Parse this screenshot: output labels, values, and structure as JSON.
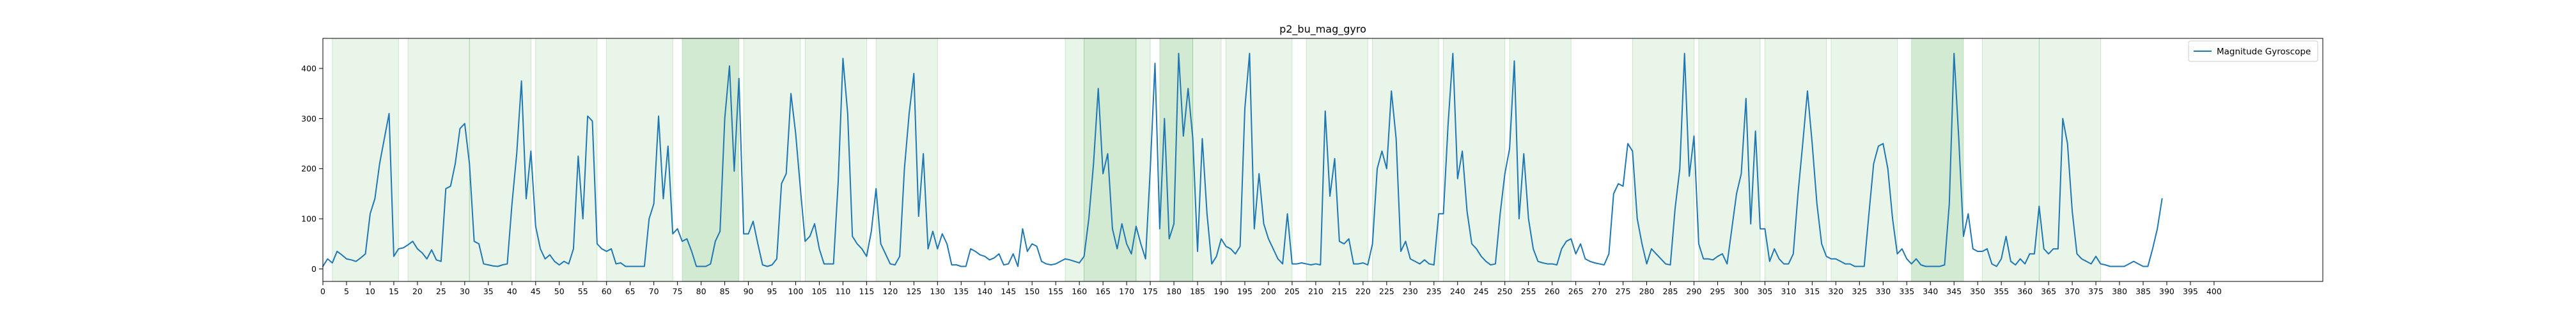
{
  "chart_data": {
    "type": "line",
    "title": "p2_bu_mag_gyro",
    "xlabel": "",
    "ylabel": "",
    "xlim": [
      0,
      423
    ],
    "ylim": [
      -25,
      460
    ],
    "x_ticks": [
      0,
      5,
      10,
      15,
      20,
      25,
      30,
      35,
      40,
      45,
      50,
      55,
      60,
      65,
      70,
      75,
      80,
      85,
      90,
      95,
      100,
      105,
      110,
      115,
      120,
      125,
      130,
      135,
      140,
      145,
      150,
      155,
      160,
      165,
      170,
      175,
      180,
      185,
      190,
      195,
      200,
      205,
      210,
      215,
      220,
      225,
      230,
      235,
      240,
      245,
      250,
      255,
      260,
      265,
      270,
      275,
      280,
      285,
      290,
      295,
      300,
      305,
      310,
      315,
      320,
      325,
      330,
      335,
      340,
      345,
      350,
      355,
      360,
      365,
      370,
      375,
      380,
      385,
      390,
      395,
      400
    ],
    "y_ticks": [
      0,
      100,
      200,
      300,
      400
    ],
    "grid": false,
    "legend_position": "top-right",
    "colors": {
      "line": "#1f77b4",
      "band": "#2ca02c"
    },
    "series": [
      {
        "name": "Magnitude Gyroscope",
        "x_start": 0,
        "x_step": 1,
        "values": [
          5,
          20,
          12,
          35,
          28,
          20,
          18,
          15,
          22,
          30,
          110,
          140,
          210,
          260,
          310,
          25,
          40,
          42,
          48,
          55,
          40,
          32,
          20,
          38,
          18,
          15,
          160,
          165,
          210,
          280,
          290,
          210,
          55,
          50,
          10,
          8,
          6,
          5,
          8,
          10,
          130,
          230,
          375,
          140,
          235,
          85,
          40,
          20,
          28,
          15,
          8,
          15,
          10,
          40,
          225,
          100,
          305,
          295,
          50,
          40,
          35,
          40,
          10,
          12,
          5,
          5,
          5,
          5,
          5,
          100,
          130,
          305,
          140,
          245,
          70,
          80,
          55,
          60,
          35,
          5,
          5,
          5,
          10,
          55,
          75,
          300,
          405,
          195,
          380,
          70,
          70,
          95,
          50,
          8,
          5,
          8,
          20,
          170,
          190,
          350,
          270,
          160,
          55,
          65,
          90,
          40,
          10,
          10,
          10,
          175,
          420,
          310,
          65,
          50,
          40,
          25,
          75,
          160,
          50,
          30,
          10,
          8,
          25,
          200,
          310,
          390,
          105,
          230,
          40,
          75,
          40,
          70,
          50,
          8,
          8,
          5,
          5,
          40,
          35,
          28,
          25,
          18,
          22,
          30,
          8,
          10,
          30,
          5,
          80,
          35,
          50,
          45,
          15,
          10,
          8,
          10,
          15,
          20,
          18,
          15,
          12,
          25,
          100,
          210,
          360,
          190,
          230,
          80,
          40,
          90,
          50,
          30,
          85,
          50,
          20,
          200,
          410,
          80,
          300,
          60,
          90,
          430,
          265,
          360,
          260,
          35,
          260,
          110,
          10,
          25,
          60,
          45,
          40,
          30,
          45,
          320,
          430,
          80,
          190,
          90,
          60,
          40,
          20,
          10,
          110,
          10,
          10,
          12,
          10,
          8,
          10,
          8,
          315,
          145,
          220,
          55,
          50,
          60,
          10,
          10,
          12,
          8,
          50,
          200,
          235,
          200,
          355,
          260,
          35,
          55,
          20,
          15,
          10,
          18,
          10,
          8,
          110,
          110,
          290,
          430,
          180,
          235,
          115,
          50,
          40,
          25,
          15,
          8,
          10,
          110,
          190,
          240,
          415,
          100,
          230,
          100,
          40,
          15,
          12,
          10,
          10,
          8,
          40,
          55,
          60,
          30,
          50,
          20,
          15,
          12,
          10,
          8,
          30,
          150,
          170,
          165,
          250,
          235,
          100,
          50,
          10,
          40,
          30,
          20,
          10,
          8,
          120,
          200,
          430,
          185,
          265,
          50,
          20,
          20,
          18,
          25,
          30,
          10,
          80,
          150,
          190,
          340,
          90,
          275,
          80,
          80,
          15,
          40,
          20,
          10,
          10,
          30,
          150,
          250,
          355,
          250,
          130,
          50,
          25,
          20,
          20,
          15,
          10,
          10,
          5,
          5,
          5,
          110,
          210,
          245,
          250,
          200,
          100,
          30,
          40,
          20,
          10,
          20,
          8,
          5,
          5,
          5,
          5,
          8,
          130,
          430,
          260,
          65,
          110,
          40,
          35,
          35,
          40,
          10,
          5,
          20,
          65,
          15,
          8,
          20,
          10,
          30,
          30,
          125,
          40,
          30,
          40,
          40,
          300,
          250,
          115,
          30,
          20,
          15,
          10,
          25,
          10,
          8,
          5,
          5,
          5,
          5,
          10,
          15,
          10,
          5,
          5,
          40,
          80,
          140
        ]
      }
    ],
    "shaded_regions": [
      {
        "start": 2,
        "end": 16,
        "strength": "light"
      },
      {
        "start": 18,
        "end": 31,
        "strength": "light"
      },
      {
        "start": 31,
        "end": 44,
        "strength": "light"
      },
      {
        "start": 45,
        "end": 58,
        "strength": "light"
      },
      {
        "start": 60,
        "end": 74,
        "strength": "light"
      },
      {
        "start": 76,
        "end": 88,
        "strength": "dark"
      },
      {
        "start": 89,
        "end": 101,
        "strength": "light"
      },
      {
        "start": 102,
        "end": 115,
        "strength": "light"
      },
      {
        "start": 117,
        "end": 130,
        "strength": "light"
      },
      {
        "start": 157,
        "end": 161,
        "strength": "light"
      },
      {
        "start": 161,
        "end": 172,
        "strength": "dark"
      },
      {
        "start": 172,
        "end": 175,
        "strength": "light"
      },
      {
        "start": 177,
        "end": 184,
        "strength": "dark"
      },
      {
        "start": 184,
        "end": 190,
        "strength": "light"
      },
      {
        "start": 191,
        "end": 205,
        "strength": "light"
      },
      {
        "start": 208,
        "end": 221,
        "strength": "light"
      },
      {
        "start": 222,
        "end": 236,
        "strength": "light"
      },
      {
        "start": 237,
        "end": 250,
        "strength": "light"
      },
      {
        "start": 251,
        "end": 264,
        "strength": "light"
      },
      {
        "start": 277,
        "end": 290,
        "strength": "light"
      },
      {
        "start": 291,
        "end": 304,
        "strength": "light"
      },
      {
        "start": 305,
        "end": 318,
        "strength": "light"
      },
      {
        "start": 319,
        "end": 333,
        "strength": "light"
      },
      {
        "start": 336,
        "end": 347,
        "strength": "dark"
      },
      {
        "start": 351,
        "end": 363,
        "strength": "light"
      },
      {
        "start": 363,
        "end": 376,
        "strength": "light"
      }
    ]
  }
}
